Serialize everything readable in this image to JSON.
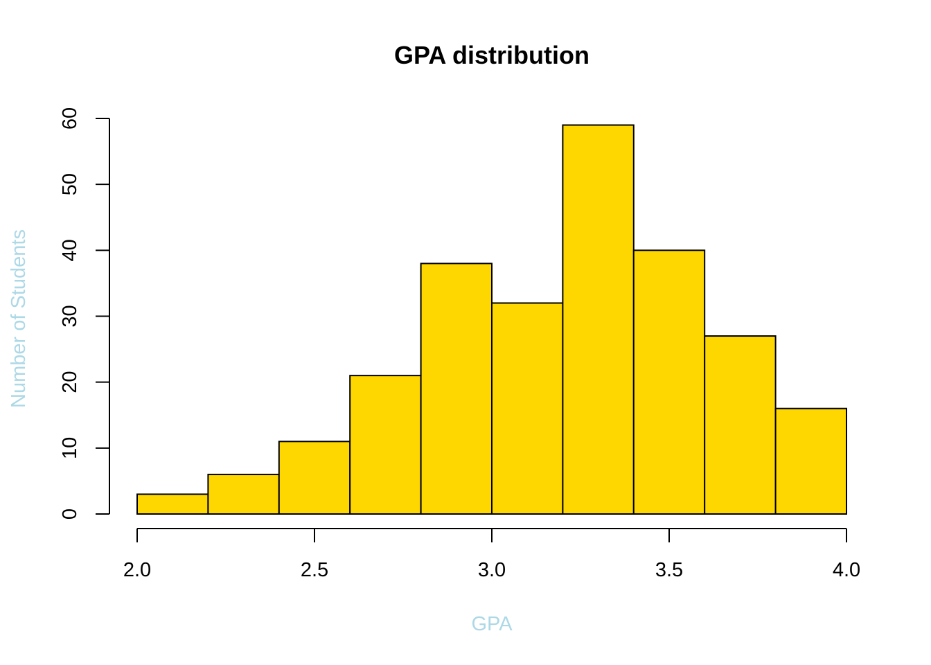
{
  "chart_data": {
    "type": "bar",
    "title": "GPA distribution",
    "xlabel": "GPA",
    "ylabel": "Number of Students",
    "bin_edges": [
      2.0,
      2.2,
      2.4,
      2.6,
      2.8,
      3.0,
      3.2,
      3.4,
      3.6,
      3.8,
      4.0
    ],
    "values": [
      3,
      6,
      11,
      21,
      38,
      32,
      59,
      40,
      27,
      16
    ],
    "xlim": [
      2.0,
      4.0
    ],
    "ylim": [
      0,
      60
    ],
    "x_ticks": [
      2.0,
      2.5,
      3.0,
      3.5,
      4.0
    ],
    "x_tick_labels": [
      "2.0",
      "2.5",
      "3.0",
      "3.5",
      "4.0"
    ],
    "y_ticks": [
      0,
      10,
      20,
      30,
      40,
      50,
      60
    ],
    "y_tick_labels": [
      "0",
      "10",
      "20",
      "30",
      "40",
      "50",
      "60"
    ],
    "bar_color": "#FFD700",
    "axis_label_color": "#ADD8E6",
    "grid": false,
    "legend": false
  }
}
